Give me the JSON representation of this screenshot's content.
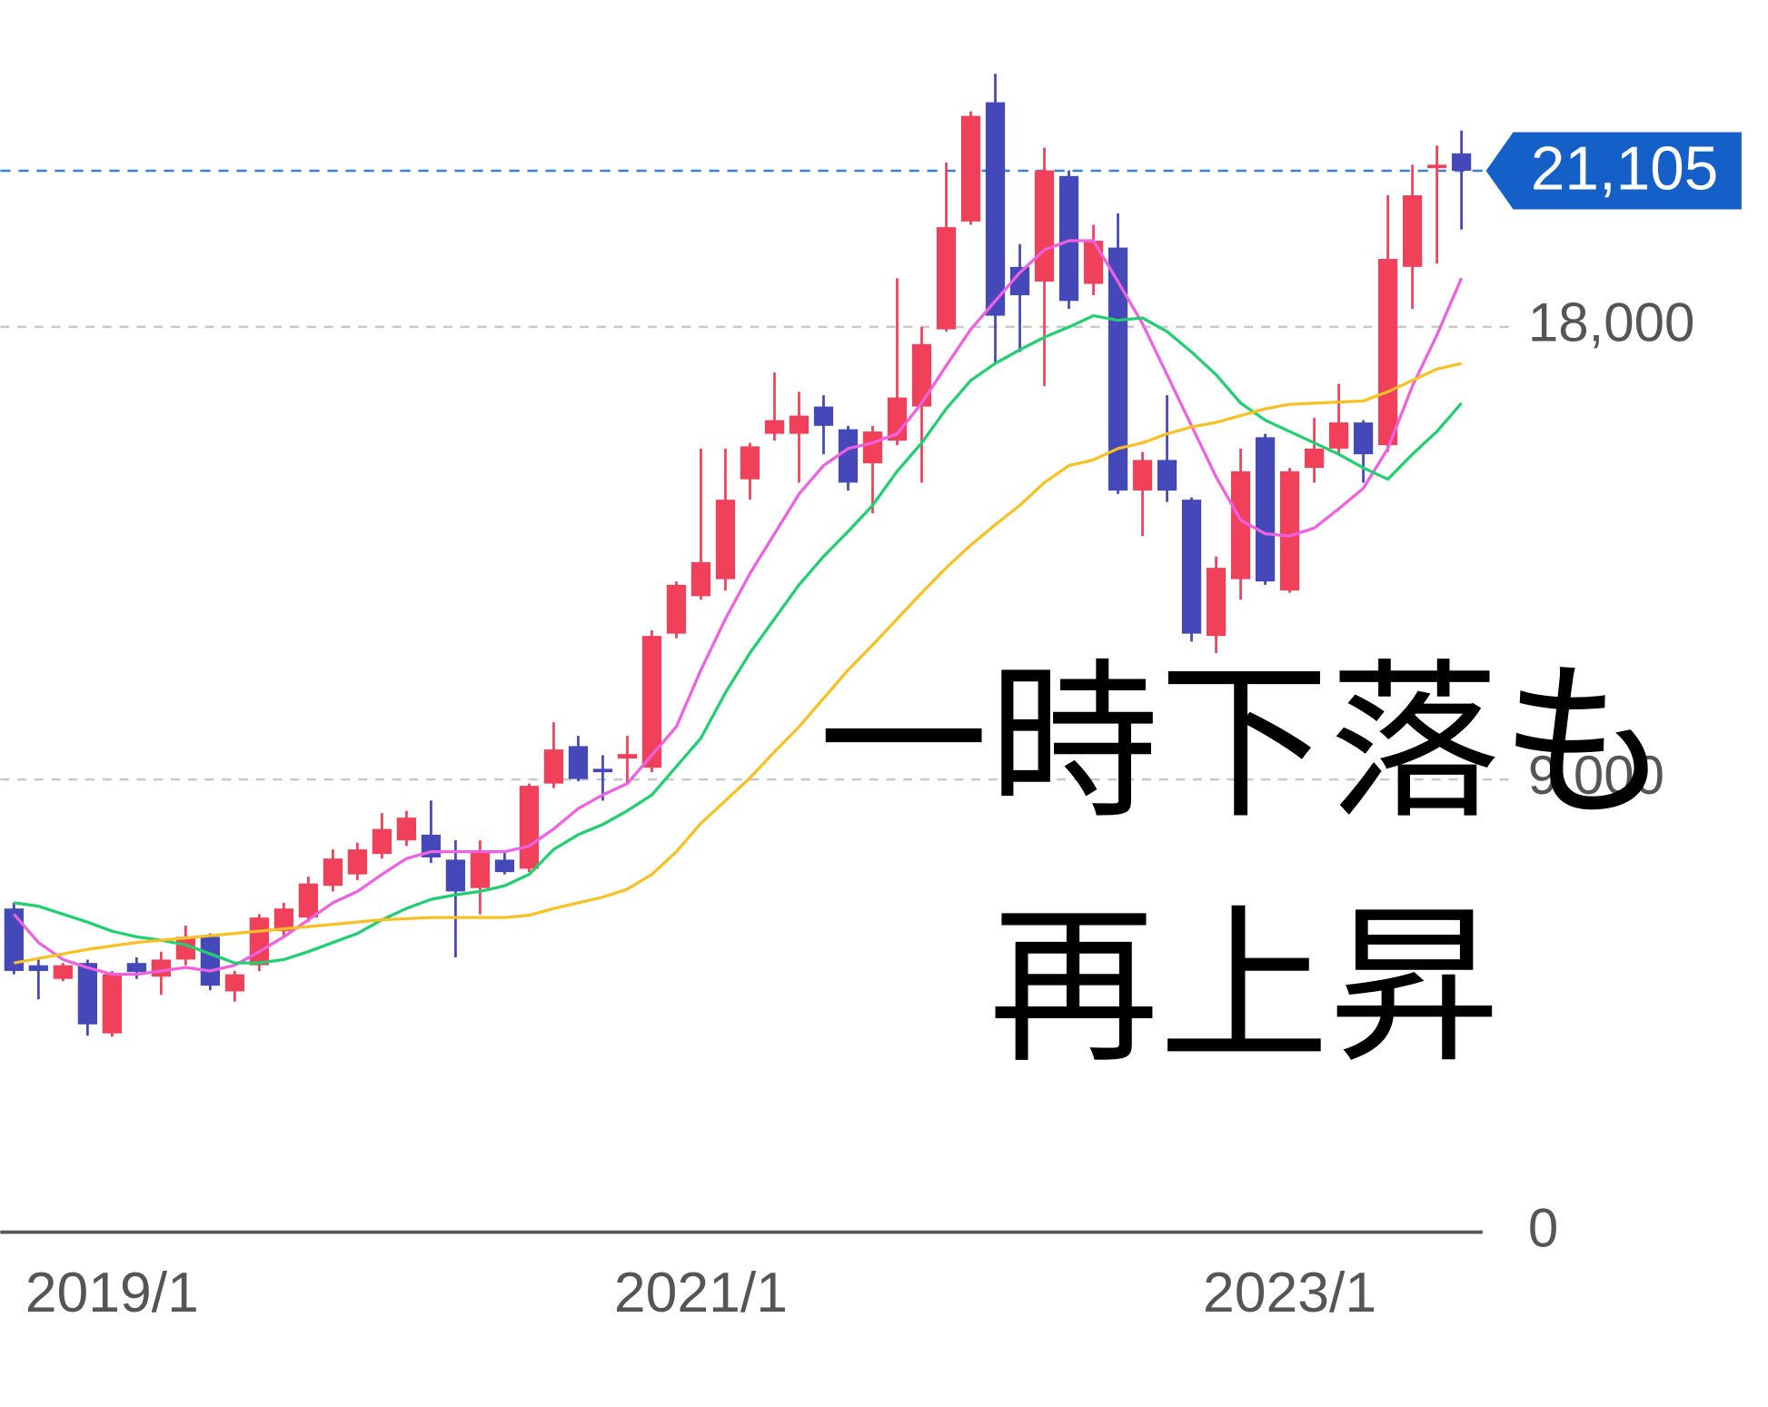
{
  "chart_data": {
    "type": "candlestick",
    "categories": [
      null,
      null,
      null,
      null,
      "2019/1",
      null,
      null,
      null,
      null,
      null,
      null,
      null,
      null,
      null,
      null,
      null,
      null,
      null,
      null,
      null,
      null,
      null,
      null,
      null,
      null,
      null,
      null,
      null,
      "2021/1",
      null,
      null,
      null,
      null,
      null,
      null,
      null,
      null,
      null,
      null,
      null,
      null,
      null,
      null,
      null,
      null,
      null,
      null,
      null,
      null,
      null,
      null,
      null,
      "2023/1",
      null,
      null,
      null,
      null,
      null,
      null,
      null
    ],
    "open": [
      6435,
      5306,
      5035,
      5351,
      3952,
      5351,
      5080,
      5419,
      5871,
      4787,
      5306,
      5984,
      6255,
      6887,
      7113,
      7519,
      7790,
      7903,
      7406,
      6842,
      7406,
      7226,
      8919,
      9664,
      9213,
      9416,
      9235,
      11900,
      12645,
      12984,
      14970,
      15874,
      15874,
      16416,
      15964,
      15287,
      15738,
      16416,
      17951,
      20096,
      22467,
      19193,
      18900,
      21000,
      18855,
      19577,
      14745,
      15354,
      14564,
      11855,
      12984,
      15806,
      12758,
      15196,
      15580,
      16100,
      15648,
      19193,
      21157,
      21451
    ],
    "high": [
      6548,
      5419,
      5351,
      5419,
      5193,
      5464,
      5577,
      6096,
      5939,
      5193,
      6322,
      6548,
      7068,
      7610,
      7745,
      8332,
      8377,
      8580,
      7790,
      7790,
      7564,
      8919,
      10138,
      9867,
      9484,
      9867,
      11967,
      12938,
      15580,
      15580,
      15693,
      17093,
      16709,
      16641,
      16032,
      16032,
      18967,
      17996,
      21270,
      22286,
      23032,
      19645,
      21564,
      21112,
      20029,
      20255,
      15512,
      16641,
      14609,
      13435,
      15580,
      15874,
      15196,
      16190,
      16867,
      16145,
      20616,
      21225,
      21609,
      21903
    ],
    "low": [
      5126,
      4629,
      4990,
      3906,
      3884,
      5035,
      4719,
      5306,
      4810,
      4584,
      5193,
      5871,
      6164,
      6774,
      7000,
      7429,
      7677,
      7339,
      5464,
      6322,
      7113,
      7158,
      8829,
      8964,
      8580,
      8919,
      9145,
      11809,
      12577,
      12758,
      14564,
      15738,
      14903,
      15467,
      14745,
      14293,
      15648,
      14903,
      17906,
      20029,
      17274,
      17500,
      16822,
      18358,
      18629,
      14677,
      13842,
      14519,
      11742,
      11516,
      12577,
      12871,
      12713,
      14903,
      15467,
      14903,
      15512,
      18358,
      19261,
      19938
    ],
    "close": [
      5193,
      5193,
      5306,
      4132,
      5126,
      5171,
      5419,
      5871,
      4900,
      5126,
      6255,
      6435,
      6932,
      7429,
      7610,
      8016,
      8242,
      7451,
      6774,
      7564,
      7158,
      8874,
      9597,
      9010,
      9145,
      9506,
      11855,
      12871,
      13322,
      14564,
      15625,
      16145,
      16235,
      16032,
      14903,
      15919,
      16596,
      17658,
      19983,
      22196,
      18222,
      18629,
      21112,
      18516,
      19713,
      14745,
      15354,
      14745,
      11900,
      13209,
      15129,
      12938,
      15129,
      15580,
      16100,
      15467,
      19351,
      20616,
      21225,
      21105
    ],
    "up_color": "#f0405a",
    "down_color": "#4448b8",
    "moving_averages": [
      {
        "color": "#f060e0",
        "values": [
          6322,
          5758,
          5419,
          5261,
          5126,
          5126,
          5193,
          5261,
          5193,
          5306,
          5577,
          5871,
          6210,
          6548,
          6774,
          7113,
          7429,
          7564,
          7564,
          7564,
          7564,
          7677,
          8016,
          8422,
          8693,
          8919,
          9484,
          10048,
          11177,
          12193,
          13096,
          13887,
          14677,
          15242,
          15580,
          15693,
          15874,
          16483,
          17229,
          17951,
          18516,
          19080,
          19532,
          19712,
          19712,
          18899,
          18064,
          17048,
          16032,
          15016,
          14158,
          13887,
          13842,
          14000,
          14383,
          14790,
          15580,
          16822,
          17838,
          18967
        ]
      },
      {
        "color": "#20d070",
        "values": [
          6548,
          6480,
          6322,
          6164,
          5984,
          5871,
          5803,
          5713,
          5532,
          5351,
          5351,
          5419,
          5577,
          5758,
          5939,
          6210,
          6435,
          6616,
          6706,
          6774,
          6887,
          7113,
          7609,
          7903,
          8106,
          8377,
          8693,
          9258,
          9822,
          10726,
          11516,
          12193,
          12871,
          13435,
          13932,
          14451,
          15129,
          15693,
          16371,
          16935,
          17274,
          17545,
          17793,
          17996,
          18222,
          18132,
          18177,
          17906,
          17500,
          17048,
          16483,
          16145,
          15919,
          15693,
          15467,
          15196,
          14970,
          15467,
          15919,
          16483
        ]
      },
      {
        "color": "#f8c020",
        "values": [
          5351,
          5442,
          5532,
          5622,
          5690,
          5758,
          5803,
          5848,
          5893,
          5939,
          5984,
          6029,
          6074,
          6119,
          6164,
          6210,
          6232,
          6255,
          6255,
          6255,
          6255,
          6300,
          6435,
          6548,
          6661,
          6819,
          7113,
          7564,
          8129,
          8580,
          9032,
          9551,
          10048,
          10613,
          11177,
          11674,
          12193,
          12713,
          13209,
          13661,
          14067,
          14451,
          14903,
          15242,
          15354,
          15580,
          15693,
          15874,
          16009,
          16099,
          16235,
          16371,
          16461,
          16483,
          16506,
          16529,
          16709,
          16935,
          17161,
          17274
        ]
      }
    ],
    "ylim": [
      0,
      24500
    ],
    "yticks": [
      0,
      {
        "value": 9000,
        "label": "9,000"
      },
      {
        "value": 18000,
        "label": "18,000"
      }
    ],
    "grid": true,
    "last_price": {
      "value": 21105,
      "label": "21,105"
    },
    "annotations": [
      "一時下落も",
      "再上昇"
    ]
  }
}
